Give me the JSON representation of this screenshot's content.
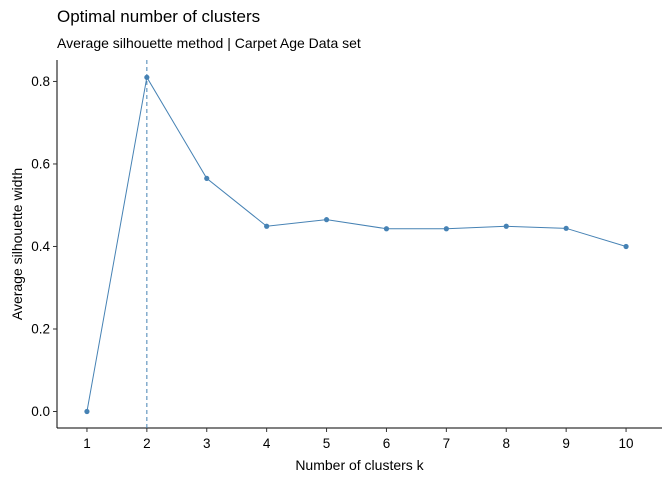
{
  "chart_data": {
    "type": "line",
    "title": "Optimal number of clusters",
    "subtitle": "Average silhouette method | Carpet Age Data set",
    "xlabel": "Number of clusters k",
    "ylabel": "Average silhouette width",
    "x": [
      1,
      2,
      3,
      4,
      5,
      6,
      7,
      8,
      9,
      10
    ],
    "y_ticks": [
      "0.0",
      "0.2",
      "0.4",
      "0.6",
      "0.8"
    ],
    "series": [
      {
        "values": [
          0.0,
          0.81,
          0.565,
          0.449,
          0.465,
          0.443,
          0.443,
          0.449,
          0.444,
          0.4
        ]
      }
    ],
    "optimal_k": 2,
    "xlim": [
      0.5,
      10.6
    ],
    "ylim": [
      -0.04,
      0.852
    ],
    "grid": false,
    "color": "#4682b4"
  }
}
